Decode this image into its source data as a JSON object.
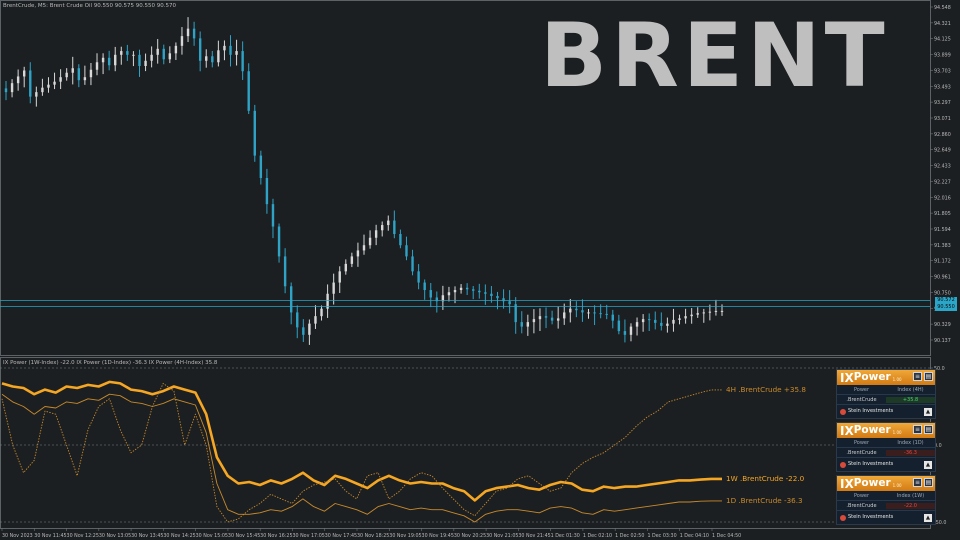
{
  "header": {
    "symbol_info": "BrentCrude, M5:  Brent Crude Oil  90.550 90.575 90.550 90.570"
  },
  "watermark": "BRENT",
  "indicator_header": "IX Power (1W-Index) -22.0 IX Power (1D-Index) -36.3 IX Power (4H-Index) 35.8",
  "price_tags": {
    "upper": "90.572",
    "lower": "90.550"
  },
  "chart_data": [
    {
      "type": "candlestick",
      "title": "BrentCrude, M5",
      "ylim": [
        90.02,
        94.6
      ],
      "y_ticks": [
        "94.548",
        "94.321",
        "94.125",
        "93.899",
        "93.703",
        "93.493",
        "93.297",
        "93.071",
        "92.860",
        "92.649",
        "92.433",
        "92.227",
        "92.016",
        "91.805",
        "91.594",
        "91.383",
        "91.172",
        "90.961",
        "90.750",
        "90.539",
        "90.329",
        "90.137"
      ],
      "close_series": [
        93.5,
        93.62,
        93.71,
        93.79,
        93.44,
        93.5,
        93.56,
        93.6,
        93.64,
        93.7,
        93.76,
        93.82,
        93.66,
        93.7,
        93.8,
        93.9,
        93.96,
        93.86,
        94.0,
        94.05,
        94.0,
        94.0,
        93.85,
        93.92,
        94.0,
        94.08,
        93.94,
        94.02,
        94.12,
        94.25,
        94.35,
        94.22,
        93.92,
        93.98,
        93.9,
        94.06,
        94.12,
        94.0,
        94.05,
        93.78,
        93.25,
        92.65,
        92.35,
        92.0,
        91.7,
        91.3,
        90.9,
        90.55,
        90.35,
        90.25,
        90.4,
        90.5,
        90.6,
        90.8,
        90.95,
        91.1,
        91.2,
        91.3,
        91.38,
        91.45,
        91.55,
        91.65,
        91.72,
        91.78,
        91.6,
        91.45,
        91.3,
        91.1,
        90.95,
        90.85,
        90.75,
        90.7,
        90.78,
        90.82,
        90.85,
        90.88,
        90.86,
        90.84,
        90.82,
        90.8,
        90.77,
        90.74,
        90.7,
        90.66,
        90.42,
        90.36,
        90.42,
        90.46,
        90.5,
        90.48,
        90.44,
        90.47,
        90.55,
        90.6,
        90.58,
        90.55,
        90.55,
        90.54,
        90.53,
        90.52,
        90.44,
        90.3,
        90.25,
        90.36,
        90.42,
        90.46,
        90.45,
        90.41,
        90.37,
        90.4,
        90.45,
        90.47,
        90.5,
        90.52,
        90.54,
        90.55,
        90.56,
        90.57,
        90.57
      ]
    },
    {
      "type": "line",
      "title": "IX Power",
      "ylim": [
        -50,
        50
      ],
      "y_ticks": [
        "50.0",
        "0.0",
        "-50.0"
      ],
      "x_ticks": [
        "30 Nov 2023",
        "30 Nov 11:45",
        "30 Nov 12:25",
        "30 Nov 13:05",
        "30 Nov 13:45",
        "30 Nov 14:25",
        "30 Nov 15:05",
        "30 Nov 15:45",
        "30 Nov 16:25",
        "30 Nov 17:05",
        "30 Nov 17:45",
        "30 Nov 18:25",
        "30 Nov 19:05",
        "30 Nov 19:45",
        "30 Nov 20:25",
        "30 Nov 21:05",
        "30 Nov 21:45",
        "1 Dec 01:30",
        "1 Dec 02:10",
        "1 Dec 02:50",
        "1 Dec 03:30",
        "1 Dec 04:10",
        "1 Dec 04:50"
      ],
      "series": [
        {
          "name": "1W .BrentCrude",
          "label": "1W .BrentCrude -22.0",
          "style": "thick",
          "color": "#f5a623",
          "values": [
            40,
            38,
            37,
            33,
            36,
            34,
            38,
            37,
            39,
            38,
            41,
            40,
            36,
            35,
            33,
            35,
            38,
            36,
            34,
            20,
            -8,
            -20,
            -25,
            -24,
            -26,
            -23,
            -25,
            -22,
            -18,
            -23,
            -26,
            -20,
            -22,
            -25,
            -28,
            -23,
            -20,
            -23,
            -25,
            -24,
            -25,
            -25,
            -28,
            -30,
            -36,
            -30,
            -28,
            -27,
            -26,
            -28,
            -29,
            -26,
            -24,
            -25,
            -29,
            -30,
            -27,
            -28,
            -27,
            -27,
            -26,
            -25,
            -24,
            -23,
            -23,
            -22.5,
            -22,
            -22
          ]
        },
        {
          "name": "1D .BrentCrude",
          "label": "1D .BrentCrude -36.3",
          "style": "thin",
          "color": "#c98a2a",
          "values": [
            33,
            28,
            25,
            20,
            25,
            24,
            28,
            27,
            30,
            29,
            33,
            32,
            28,
            27,
            25,
            27,
            30,
            28,
            26,
            8,
            -25,
            -42,
            -45,
            -45,
            -44,
            -42,
            -43,
            -40,
            -35,
            -40,
            -43,
            -38,
            -40,
            -42,
            -45,
            -40,
            -38,
            -40,
            -42,
            -41,
            -42,
            -42,
            -44,
            -46,
            -50,
            -45,
            -43,
            -42,
            -42,
            -43,
            -44,
            -41,
            -40,
            -41,
            -44,
            -45,
            -42,
            -43,
            -42,
            -41,
            -40,
            -39,
            -38,
            -37,
            -37,
            -36.5,
            -36.3,
            -36.3
          ]
        },
        {
          "name": "4H .BrentCrude",
          "label": "4H .BrentCrude +35.8",
          "style": "dotted",
          "color": "#c98a2a",
          "values": [
            30,
            0,
            -18,
            -10,
            22,
            20,
            0,
            -20,
            10,
            25,
            30,
            10,
            -5,
            0,
            25,
            40,
            35,
            0,
            20,
            0,
            -40,
            -50,
            -48,
            -42,
            -38,
            -32,
            -35,
            -38,
            -30,
            -26,
            -24,
            -22,
            -30,
            -35,
            -20,
            -18,
            -35,
            -30,
            -22,
            -18,
            -20,
            -28,
            -35,
            -42,
            -46,
            -38,
            -30,
            -28,
            -22,
            -20,
            -25,
            -30,
            -28,
            -18,
            -12,
            -8,
            -5,
            0,
            5,
            12,
            18,
            22,
            28,
            30,
            32,
            34,
            35.8,
            35.8
          ]
        }
      ]
    }
  ],
  "panels": [
    {
      "logo_ix": "IX",
      "logo_power": "Power",
      "version": "1.00",
      "col_power": "Power",
      "col_index": "Index (4H)",
      "symbol": ".BrentCrude",
      "value": "+35.8",
      "sign": "pos",
      "brand": "Stein Investments"
    },
    {
      "logo_ix": "IX",
      "logo_power": "Power",
      "version": "1.00",
      "col_power": "Power",
      "col_index": "Index (1D)",
      "symbol": ".BrentCrude",
      "value": "-36.3",
      "sign": "neg",
      "brand": "Stein Investments"
    },
    {
      "logo_ix": "IX",
      "logo_power": "Power",
      "version": "1.00",
      "col_power": "Power",
      "col_index": "Index (1W)",
      "symbol": ".BrentCrude",
      "value": "-22.0",
      "sign": "neg",
      "brand": "Stein Investments"
    }
  ],
  "colors": {
    "background": "#1c1f22",
    "grid": "#6e7378",
    "candle_up": "#d8d8d8",
    "candle_down": "#2ea3c6",
    "hline": "#2aa6c8",
    "accent": "#f5a623",
    "positive": "#42d46a",
    "negative": "#e0483f"
  }
}
